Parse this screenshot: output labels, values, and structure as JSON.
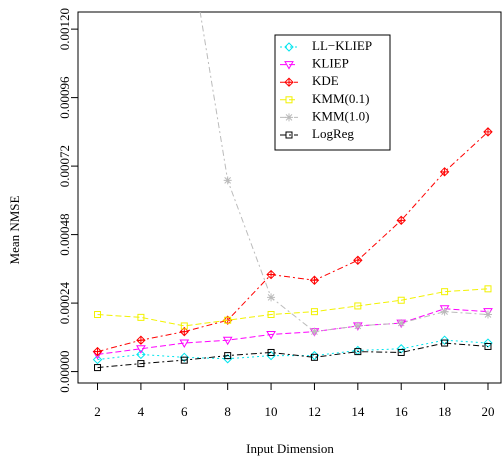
{
  "chart_data": {
    "type": "line",
    "x_label": "Input Dimension",
    "y_label": "Mean NMSE",
    "x": [
      2,
      4,
      6,
      8,
      10,
      12,
      14,
      16,
      18,
      20
    ],
    "series": [
      {
        "name": "LL−KLIEP",
        "color": "#00e5ee",
        "values": [
          4.2e-05,
          6e-05,
          5e-05,
          4.5e-05,
          5.6e-05,
          5.6e-05,
          7.4e-05,
          8e-05,
          0.00011,
          0.0001
        ]
      },
      {
        "name": "KLIEP",
        "color": "#ff00ff",
        "values": [
          6e-05,
          8e-05,
          0.0001,
          0.00011,
          0.00013,
          0.00014,
          0.00016,
          0.00017,
          0.00022,
          0.00021
        ]
      },
      {
        "name": "KDE",
        "color": "#ff0000",
        "values": [
          7e-05,
          0.00011,
          0.00014,
          0.00018,
          0.00034,
          0.00032,
          0.00039,
          0.00053,
          0.0007,
          0.00084
        ]
      },
      {
        "name": "KMM(0.1)",
        "color": "#f2f200",
        "values": [
          0.0002,
          0.00019,
          0.00016,
          0.00018,
          0.0002,
          0.00021,
          0.00023,
          0.00025,
          0.00028,
          0.00029
        ]
      },
      {
        "name": "KMM(1.0)",
        "color": "#bbbbbb",
        "values": [
          null,
          null,
          0.0016,
          0.00067,
          0.00026,
          0.00014,
          0.00016,
          0.00017,
          0.00021,
          0.0002
        ]
      },
      {
        "name": "LogReg",
        "color": "#000000",
        "values": [
          1.4e-05,
          2.8e-05,
          4e-05,
          5.6e-05,
          6.7e-05,
          5e-05,
          7e-05,
          6.7e-05,
          0.0001,
          8.8e-05
        ]
      }
    ],
    "xlim": [
      1.1,
      20.6
    ],
    "ylim": [
      -4e-05,
      0.00126
    ],
    "xticks": [
      2,
      4,
      6,
      8,
      10,
      12,
      14,
      16,
      18,
      20
    ],
    "yticks": [
      {
        "value": 0,
        "label": "0.00000"
      },
      {
        "value": 0.00024,
        "label": "0.00024"
      },
      {
        "value": 0.00048,
        "label": "0.00048"
      },
      {
        "value": 0.00072,
        "label": "0.00072"
      },
      {
        "value": 0.00096,
        "label": "0.00096"
      },
      {
        "value": 0.0012,
        "label": "0.00120"
      }
    ],
    "legend": "top-center"
  }
}
